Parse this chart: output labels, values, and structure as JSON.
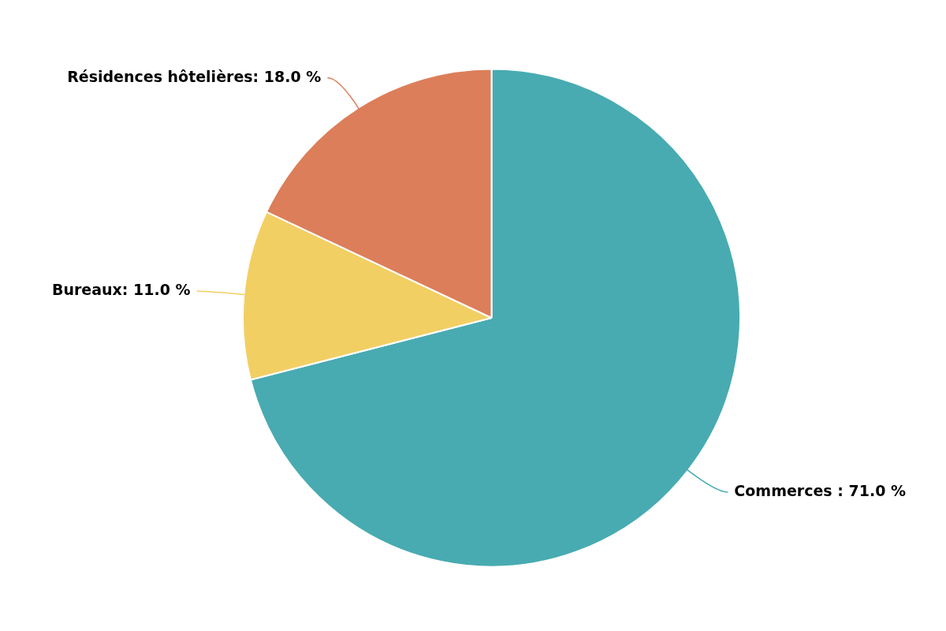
{
  "chart_data": {
    "type": "pie",
    "categories": [
      "Commerces ",
      "Bureaux",
      "Résidences hôtelières"
    ],
    "values": [
      71,
      11,
      18
    ],
    "value_labels": [
      "71.0 %",
      "11.0 %",
      "18.0 %"
    ],
    "colors": [
      "#48abb1",
      "#f2cf63",
      "#dc7e5a"
    ],
    "legend": false
  }
}
